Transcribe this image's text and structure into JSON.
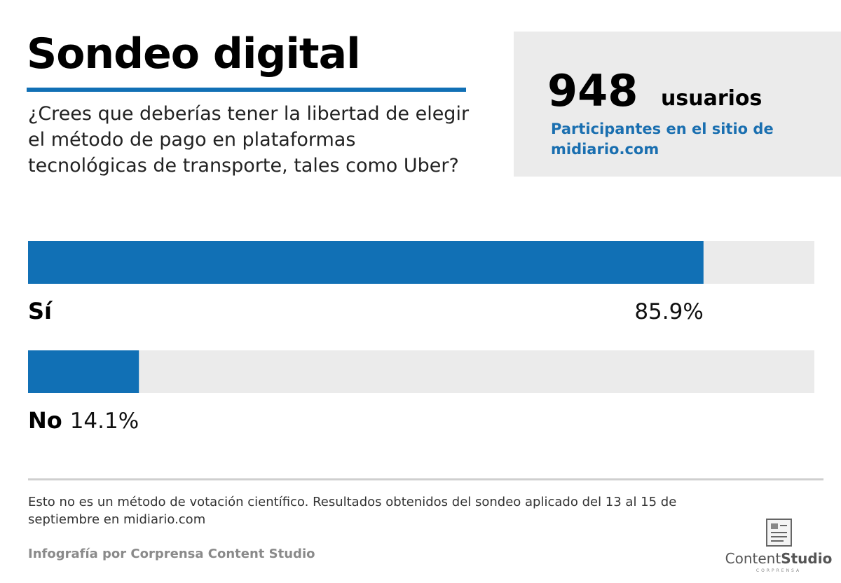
{
  "chart_data": {
    "type": "bar",
    "orientation": "horizontal",
    "title": "Sondeo digital",
    "subtitle": "¿Crees que deberías tener la libertad de elegir el método de pago en plataformas tecnológicas de transporte, tales como Uber?",
    "categories": [
      "Sí",
      "No"
    ],
    "values": [
      85.9,
      14.1
    ],
    "value_labels": [
      "85.9%",
      "14.1%"
    ],
    "color": "#1170b5",
    "track_color": "#ebebeb",
    "xlim": [
      0,
      100
    ]
  },
  "stats": {
    "count": 948,
    "unit": "usuarios",
    "description": "Participantes en el sitio de midiario.com"
  },
  "footer": {
    "note": "Esto no es un método de votación científico. Resultados obtenidos del sondeo aplicado del 13 al 15 de septiembre en midiario.com",
    "credit": "Infografía por Corprensa Content Studio",
    "logo_content": "Content",
    "logo_studio": "Studio",
    "logo_company": "CORPRENSA"
  }
}
